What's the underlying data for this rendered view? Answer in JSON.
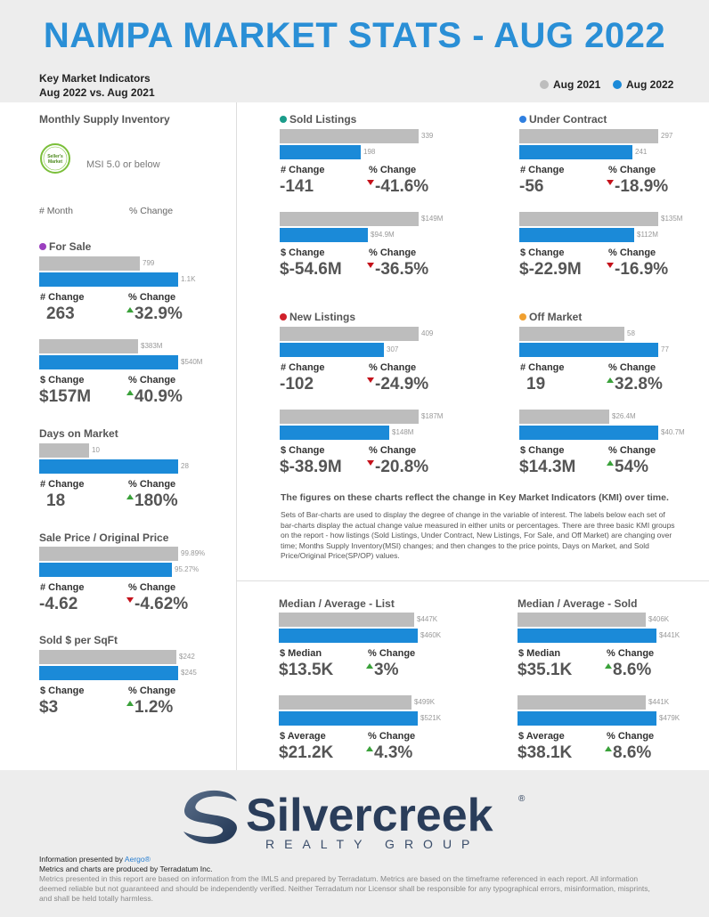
{
  "title": "NAMPA MARKET STATS - AUG 2022",
  "subtitle": {
    "line1": "Key Market Indicators",
    "line2": "Aug 2022 vs. Aug 2021"
  },
  "legend": {
    "prev": "Aug 2021",
    "curr": "Aug 2022",
    "prev_color": "#bdbdbd",
    "curr_color": "#1b8ad8"
  },
  "colors": {
    "gray": "#bdbdbd",
    "blue": "#1b8ad8",
    "up": "#3aa13a",
    "down": "#c4111a"
  },
  "msi": {
    "title": "Monthly Supply Inventory",
    "badge_line1": "Seller's",
    "badge_line2": "Market",
    "text": "MSI 5.0 or below",
    "col1": "# Month",
    "col2": "% Change"
  },
  "for_sale": {
    "title": "For Sale",
    "dot": "#9b3fbf",
    "count": {
      "prev": "799",
      "curr": "1.1K",
      "change_label": "# Change",
      "change": "263",
      "pct_label": "% Change",
      "pct": "32.9%",
      "dir": "up"
    },
    "volume": {
      "prev": "$383M",
      "curr": "$540M",
      "change_label": "$ Change",
      "change": "$157M",
      "pct_label": "% Change",
      "pct": "40.9%",
      "dir": "up"
    }
  },
  "days_on_market": {
    "title": "Days on Market",
    "prev": "10",
    "curr": "28",
    "change_label": "# Change",
    "change": "18",
    "pct_label": "% Change",
    "pct": "180%",
    "dir": "up"
  },
  "sale_price": {
    "title": "Sale Price / Original Price",
    "prev": "99.89%",
    "curr": "95.27%",
    "change_label": "# Change",
    "change": "-4.62",
    "pct_label": "% Change",
    "pct": "-4.62%",
    "dir": "down"
  },
  "sqft": {
    "title": "Sold $ per SqFt",
    "prev": "$242",
    "curr": "$245",
    "change_label": "$ Change",
    "change": "$3",
    "pct_label": "% Change",
    "pct": "1.2%",
    "dir": "up"
  },
  "sold": {
    "title": "Sold Listings",
    "dot": "#1a9c8a",
    "count": {
      "prev": "339",
      "curr": "198",
      "change_label": "# Change",
      "change": "-141",
      "pct_label": "% Change",
      "pct": "-41.6%",
      "dir": "down"
    },
    "volume": {
      "prev": "$149M",
      "curr": "$94.9M",
      "change_label": "$ Change",
      "change": "$-54.6M",
      "pct_label": "% Change",
      "pct": "-36.5%",
      "dir": "down"
    }
  },
  "under_contract": {
    "title": "Under Contract",
    "dot": "#2f7fe0",
    "count": {
      "prev": "297",
      "curr": "241",
      "change_label": "# Change",
      "change": "-56",
      "pct_label": "% Change",
      "pct": "-18.9%",
      "dir": "down"
    },
    "volume": {
      "prev": "$135M",
      "curr": "$112M",
      "change_label": "$ Change",
      "change": "$-22.9M",
      "pct_label": "% Change",
      "pct": "-16.9%",
      "dir": "down"
    }
  },
  "new_listings": {
    "title": "New Listings",
    "dot": "#d0202a",
    "count": {
      "prev": "409",
      "curr": "307",
      "change_label": "# Change",
      "change": "-102",
      "pct_label": "% Change",
      "pct": "-24.9%",
      "dir": "down"
    },
    "volume": {
      "prev": "$187M",
      "curr": "$148M",
      "change_label": "$ Change",
      "change": "$-38.9M",
      "pct_label": "% Change",
      "pct": "-20.8%",
      "dir": "down"
    }
  },
  "off_market": {
    "title": "Off Market",
    "dot": "#f0a030",
    "count": {
      "prev": "58",
      "curr": "77",
      "change_label": "# Change",
      "change": "19",
      "pct_label": "% Change",
      "pct": "32.8%",
      "dir": "up"
    },
    "volume": {
      "prev": "$26.4M",
      "curr": "$40.7M",
      "change_label": "$ Change",
      "change": "$14.3M",
      "pct_label": "% Change",
      "pct": "54%",
      "dir": "up"
    }
  },
  "notes": {
    "heading": "The figures on these charts reflect the change in Key Market Indicators (KMI) over time.",
    "body": "Sets of Bar-charts are used to display the degree of change in the variable of interest. The labels below each set of bar-charts display the actual change value measured in either units or percentages. There are three basic KMI groups on the report - how listings (Sold Listings, Under Contract, New Listings, For Sale, and Off Market) are changing over time; Months Supply Inventory(MSI) changes; and then changes to the price points, Days on Market, and Sold Price/Original Price(SP/OP) values."
  },
  "list": {
    "title": "Median / Average - List",
    "median": {
      "prev": "$447K",
      "curr": "$460K",
      "change_label": "$ Median",
      "change": "$13.5K",
      "pct_label": "% Change",
      "pct": "3%",
      "dir": "up"
    },
    "average": {
      "prev": "$499K",
      "curr": "$521K",
      "change_label": "$ Average",
      "change": "$21.2K",
      "pct_label": "% Change",
      "pct": "4.3%",
      "dir": "up"
    }
  },
  "sold_price": {
    "title": "Median / Average - Sold",
    "median": {
      "prev": "$406K",
      "curr": "$441K",
      "change_label": "$ Median",
      "change": "$35.1K",
      "pct_label": "% Change",
      "pct": "8.6%",
      "dir": "up"
    },
    "average": {
      "prev": "$441K",
      "curr": "$479K",
      "change_label": "$ Average",
      "change": "$38.1K",
      "pct_label": "% Change",
      "pct": "8.6%",
      "dir": "up"
    }
  },
  "brand": {
    "name": "Silvercreek",
    "tagline": "REALTY GROUP",
    "reg": "®"
  },
  "footer": {
    "presented_prefix": "Information presented by ",
    "presented_by": "Aergo®",
    "produced": "Metrics and charts are produced by Terradatum Inc.",
    "disclaimer": "Metrics presented in this report are based on information from the IMLS and prepared by Terradatum. Metrics are based on the timeframe referenced in each report. All information deemed reliable but not guaranteed and should be independently verified. Neither Terradatum nor Licensor shall be responsible for any typographical errors, misinformation, misprints, and shall be held totally harmless."
  }
}
